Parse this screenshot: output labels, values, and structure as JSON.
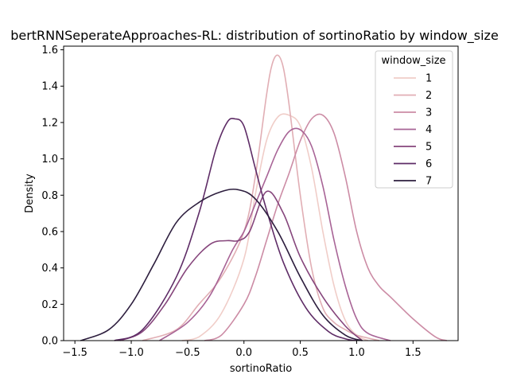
{
  "chart_data": {
    "type": "line",
    "title": "bertRNNSeperateApproaches-RL: distribution of sortinoRatio by window_size",
    "xlabel": "sortinoRatio",
    "ylabel": "Density",
    "xlim": [
      -1.6,
      1.9
    ],
    "ylim": [
      0,
      1.62
    ],
    "xticks": [
      -1.5,
      -1.0,
      -0.5,
      0.0,
      0.5,
      1.0,
      1.5
    ],
    "xtick_labels": [
      "−1.5",
      "−1.0",
      "−0.5",
      "0.0",
      "0.5",
      "1.0",
      "1.5"
    ],
    "yticks": [
      0.0,
      0.2,
      0.4,
      0.6,
      0.8,
      1.0,
      1.2,
      1.4,
      1.6
    ],
    "ytick_labels": [
      "0.0",
      "0.2",
      "0.4",
      "0.6",
      "0.8",
      "1.0",
      "1.2",
      "1.4",
      "1.6"
    ],
    "legend": {
      "title": "window_size",
      "placement": "upper-right"
    },
    "grid": false,
    "series": [
      {
        "name": "1",
        "color": "#f0cdc8",
        "x": [
          -0.55,
          -0.4,
          -0.2,
          0.0,
          0.1,
          0.2,
          0.3,
          0.4,
          0.5,
          0.6,
          0.7,
          0.8,
          0.9,
          1.0,
          1.1
        ],
        "y": [
          0.0,
          0.02,
          0.15,
          0.45,
          0.8,
          1.1,
          1.23,
          1.24,
          1.18,
          0.95,
          0.6,
          0.3,
          0.11,
          0.03,
          0.0
        ]
      },
      {
        "name": "2",
        "color": "#e1aeb4",
        "x": [
          -0.9,
          -0.6,
          -0.4,
          -0.2,
          0.0,
          0.1,
          0.2,
          0.25,
          0.3,
          0.35,
          0.4,
          0.5,
          0.6,
          0.7,
          0.8,
          0.9,
          1.0,
          1.2
        ],
        "y": [
          0.0,
          0.06,
          0.2,
          0.35,
          0.6,
          0.9,
          1.35,
          1.52,
          1.57,
          1.5,
          1.3,
          0.8,
          0.4,
          0.18,
          0.1,
          0.06,
          0.03,
          0.0
        ]
      },
      {
        "name": "3",
        "color": "#cc8ca5",
        "x": [
          -0.35,
          -0.2,
          0.0,
          0.1,
          0.2,
          0.3,
          0.4,
          0.5,
          0.6,
          0.7,
          0.8,
          0.9,
          1.0,
          1.1,
          1.2,
          1.3,
          1.5,
          1.7,
          1.8
        ],
        "y": [
          0.0,
          0.03,
          0.2,
          0.35,
          0.55,
          0.75,
          0.92,
          1.1,
          1.22,
          1.24,
          1.14,
          0.9,
          0.6,
          0.4,
          0.3,
          0.24,
          0.12,
          0.02,
          0.0
        ]
      },
      {
        "name": "4",
        "color": "#a86496",
        "x": [
          -0.75,
          -0.5,
          -0.3,
          -0.1,
          0.0,
          0.1,
          0.2,
          0.3,
          0.4,
          0.5,
          0.6,
          0.7,
          0.8,
          0.9,
          1.0,
          1.1,
          1.3
        ],
        "y": [
          0.0,
          0.1,
          0.25,
          0.5,
          0.6,
          0.75,
          0.9,
          1.05,
          1.15,
          1.16,
          1.07,
          0.85,
          0.55,
          0.3,
          0.12,
          0.04,
          0.0
        ]
      },
      {
        "name": "5",
        "color": "#86467c",
        "x": [
          -1.1,
          -0.9,
          -0.7,
          -0.5,
          -0.3,
          -0.15,
          -0.05,
          0.05,
          0.2,
          0.35,
          0.5,
          0.7,
          0.9,
          1.05
        ],
        "y": [
          0.0,
          0.05,
          0.2,
          0.4,
          0.53,
          0.55,
          0.55,
          0.6,
          0.82,
          0.7,
          0.46,
          0.24,
          0.08,
          0.0
        ]
      },
      {
        "name": "6",
        "color": "#5e2c66",
        "x": [
          -1.15,
          -0.9,
          -0.6,
          -0.4,
          -0.25,
          -0.15,
          -0.08,
          0.0,
          0.1,
          0.2,
          0.35,
          0.55,
          0.75,
          0.9,
          1.0
        ],
        "y": [
          0.0,
          0.06,
          0.35,
          0.7,
          1.05,
          1.2,
          1.22,
          1.18,
          0.95,
          0.72,
          0.43,
          0.18,
          0.05,
          0.01,
          0.0
        ]
      },
      {
        "name": "7",
        "color": "#2d1e3e",
        "x": [
          -1.45,
          -1.2,
          -1.0,
          -0.8,
          -0.6,
          -0.4,
          -0.2,
          -0.05,
          0.1,
          0.3,
          0.5,
          0.7,
          0.9,
          1.05
        ],
        "y": [
          0.0,
          0.06,
          0.2,
          0.42,
          0.65,
          0.76,
          0.82,
          0.83,
          0.78,
          0.6,
          0.35,
          0.14,
          0.03,
          0.0
        ]
      }
    ]
  }
}
